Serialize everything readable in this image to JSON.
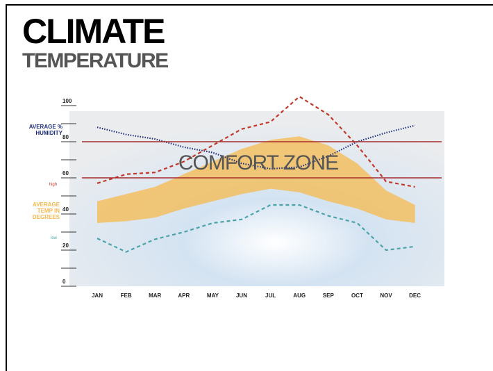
{
  "chart_data": {
    "type": "line",
    "title": "CLIMATE",
    "subtitle": "TEMPERATURE",
    "categories": [
      "JAN",
      "FEB",
      "MAR",
      "APR",
      "MAY",
      "JUN",
      "JUL",
      "AUG",
      "SEP",
      "OCT",
      "NOV",
      "DEC"
    ],
    "ylim": [
      0,
      100
    ],
    "yticks": [
      0,
      20,
      40,
      60,
      80,
      100
    ],
    "minor_yticks": [
      10,
      30,
      50,
      70,
      90
    ],
    "comfort_zone": {
      "label": "COMFORT ZONE",
      "lower": 60,
      "upper": 80,
      "color": "#a52a2a"
    },
    "series": [
      {
        "name": "AVERAGE TEMP IN DEGREES",
        "type": "band",
        "color": "#f5b94e",
        "high": [
          47,
          51,
          55,
          62,
          69,
          76,
          81,
          83,
          78,
          68,
          53,
          45
        ],
        "low": [
          35,
          36,
          38,
          43,
          47,
          51,
          54,
          52,
          47,
          43,
          37,
          35
        ]
      },
      {
        "name": "AVERAGE % HUMIDITY",
        "type": "line",
        "color": "#1f2f7a",
        "dash": "dotted",
        "values": [
          88,
          84,
          81.5,
          77,
          74,
          68,
          65,
          66,
          72,
          80,
          85,
          89
        ]
      },
      {
        "name": "high",
        "type": "line",
        "color": "#c0392b",
        "dash": "dashed",
        "values": [
          57,
          62,
          63,
          69,
          78,
          87,
          91,
          105,
          95,
          78,
          58,
          55
        ]
      },
      {
        "name": "low",
        "type": "line",
        "color": "#4aa3a8",
        "dash": "dashed",
        "values": [
          26.5,
          19,
          26,
          30,
          35,
          37,
          45,
          45,
          39,
          35,
          20,
          22
        ]
      }
    ]
  }
}
